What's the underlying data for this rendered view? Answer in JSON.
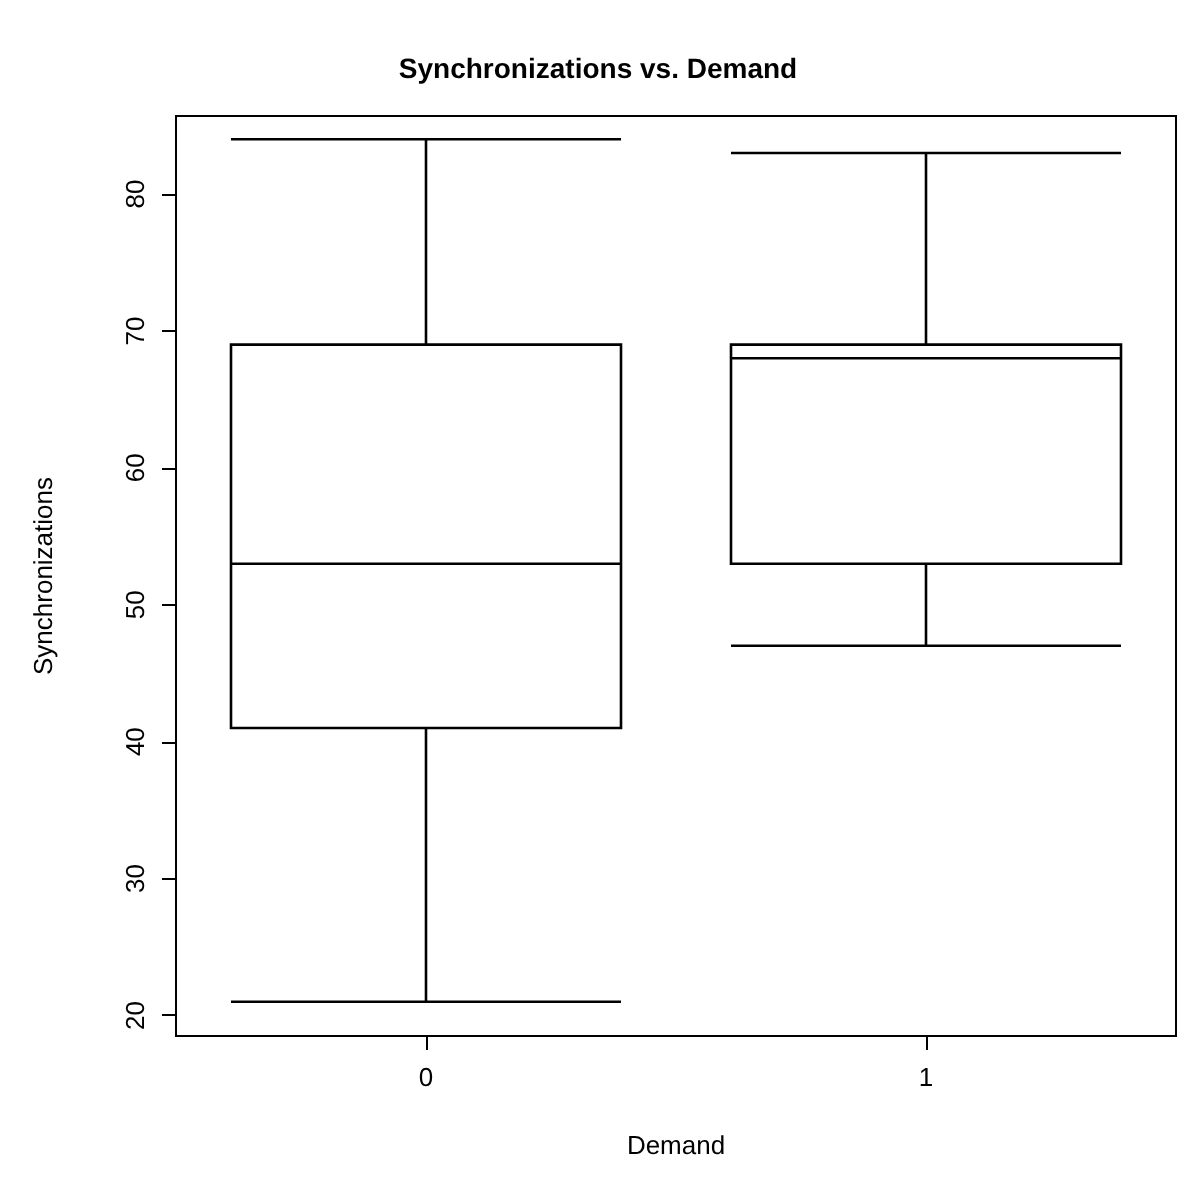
{
  "chart_data": {
    "type": "box",
    "title": "Synchronizations vs. Demand",
    "xlabel": "Demand",
    "ylabel": "Synchronizations",
    "categories": [
      "0",
      "1"
    ],
    "boxes": [
      {
        "low": 21,
        "q1": 41,
        "median": 53,
        "q3": 69,
        "high": 84
      },
      {
        "low": 47,
        "q1": 53,
        "median": 68,
        "q3": 69,
        "high": 83
      }
    ],
    "ylim": [
      18.5,
      85.7
    ],
    "yticks": [
      20,
      30,
      40,
      50,
      60,
      70,
      80
    ],
    "grid": false
  }
}
